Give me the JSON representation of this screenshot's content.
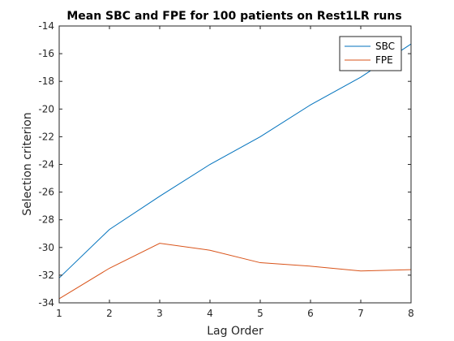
{
  "chart_data": {
    "type": "line",
    "title": "Mean SBC and FPE for 100 patients on Rest1LR runs",
    "xlabel": "Lag Order",
    "ylabel": "Selection criterion",
    "xlim": [
      1,
      8
    ],
    "ylim": [
      -34,
      -14
    ],
    "x_ticks": [
      1,
      2,
      3,
      4,
      5,
      6,
      7,
      8
    ],
    "y_ticks": [
      -34,
      -32,
      -30,
      -28,
      -26,
      -24,
      -22,
      -20,
      -18,
      -16,
      -14
    ],
    "grid": false,
    "legend_position": "top-right",
    "x": [
      1,
      2,
      3,
      4,
      5,
      6,
      7,
      8
    ],
    "series": [
      {
        "name": "SBC",
        "color": "#0072BD",
        "values": [
          -32.2,
          -28.7,
          -26.3,
          -24.0,
          -22.0,
          -19.7,
          -17.7,
          -15.3
        ]
      },
      {
        "name": "FPE",
        "color": "#D95319",
        "values": [
          -33.7,
          -31.5,
          -29.7,
          -30.2,
          -31.1,
          -31.35,
          -31.7,
          -31.6
        ]
      }
    ]
  }
}
